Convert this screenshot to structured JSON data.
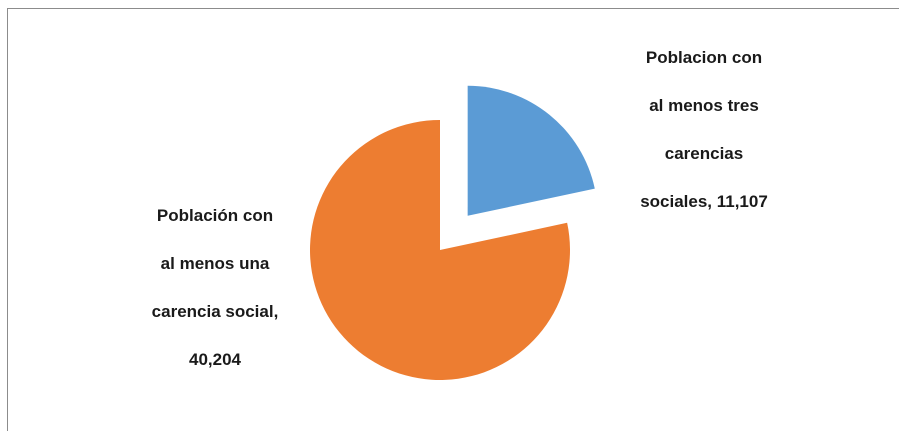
{
  "chart_data": {
    "type": "pie",
    "exploded": true,
    "slices": [
      {
        "label_lines": [
          "Poblacion  con",
          "al menos tres",
          "carencias",
          "sociales,  11,107"
        ],
        "name": "Poblacion con al menos tres carencias sociales",
        "value": 11107,
        "color": "#5b9bd5"
      },
      {
        "label_lines": [
          "Población con",
          "al menos una",
          "carencia social,",
          "40,204"
        ],
        "name": "Población con al menos una carencia social",
        "value": 40204,
        "color": "#ed7d31"
      }
    ]
  }
}
